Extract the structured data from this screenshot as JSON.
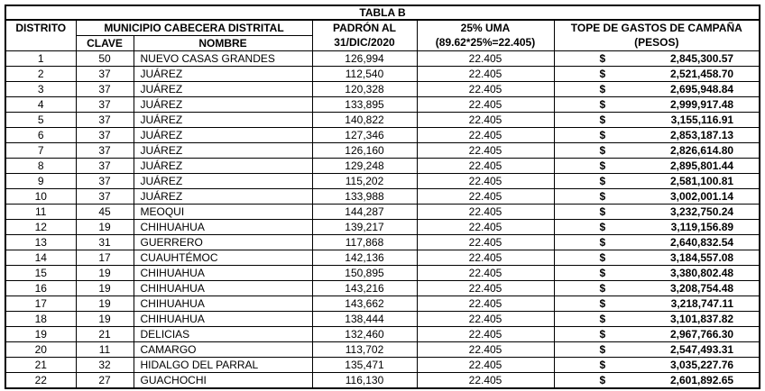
{
  "title": "TABLA B",
  "columns": {
    "distrito": "DISTRITO",
    "municipio_group": "MUNICIPIO CABECERA DISTRITAL",
    "clave": "CLAVE",
    "nombre": "NOMBRE",
    "padron": [
      "PADRÓN AL",
      "31/DIC/2020"
    ],
    "uma": [
      "25% UMA",
      "(89.62*25%=22.405)"
    ],
    "tope": [
      "TOPE DE GASTOS DE CAMPAÑA",
      "(PESOS)"
    ]
  },
  "currency_symbol": "$",
  "colors": {
    "border": "#000000",
    "text": "#000000",
    "background": "#ffffff"
  },
  "rows": [
    {
      "distrito": "1",
      "clave": "50",
      "nombre": "NUEVO CASAS GRANDES",
      "padron": "126,994",
      "uma": "22.405",
      "tope": "2,845,300.57"
    },
    {
      "distrito": "2",
      "clave": "37",
      "nombre": "JUÁREZ",
      "padron": "112,540",
      "uma": "22.405",
      "tope": "2,521,458.70"
    },
    {
      "distrito": "3",
      "clave": "37",
      "nombre": "JUÁREZ",
      "padron": "120,328",
      "uma": "22.405",
      "tope": "2,695,948.84"
    },
    {
      "distrito": "4",
      "clave": "37",
      "nombre": "JUÁREZ",
      "padron": "133,895",
      "uma": "22.405",
      "tope": "2,999,917.48"
    },
    {
      "distrito": "5",
      "clave": "37",
      "nombre": "JUÁREZ",
      "padron": "140,822",
      "uma": "22.405",
      "tope": "3,155,116.91"
    },
    {
      "distrito": "6",
      "clave": "37",
      "nombre": "JUÁREZ",
      "padron": "127,346",
      "uma": "22.405",
      "tope": "2,853,187.13"
    },
    {
      "distrito": "7",
      "clave": "37",
      "nombre": "JUÁREZ",
      "padron": "126,160",
      "uma": "22.405",
      "tope": "2,826,614.80"
    },
    {
      "distrito": "8",
      "clave": "37",
      "nombre": "JUÁREZ",
      "padron": "129,248",
      "uma": "22.405",
      "tope": "2,895,801.44"
    },
    {
      "distrito": "9",
      "clave": "37",
      "nombre": "JUÁREZ",
      "padron": "115,202",
      "uma": "22.405",
      "tope": "2,581,100.81"
    },
    {
      "distrito": "10",
      "clave": "37",
      "nombre": "JUÁREZ",
      "padron": "133,988",
      "uma": "22.405",
      "tope": "3,002,001.14"
    },
    {
      "distrito": "11",
      "clave": "45",
      "nombre": "MEOQUI",
      "padron": "144,287",
      "uma": "22.405",
      "tope": "3,232,750.24"
    },
    {
      "distrito": "12",
      "clave": "19",
      "nombre": "CHIHUAHUA",
      "padron": "139,217",
      "uma": "22.405",
      "tope": "3,119,156.89"
    },
    {
      "distrito": "13",
      "clave": "31",
      "nombre": "GUERRERO",
      "padron": "117,868",
      "uma": "22.405",
      "tope": "2,640,832.54"
    },
    {
      "distrito": "14",
      "clave": "17",
      "nombre": "CUAUHTÉMOC",
      "padron": "142,136",
      "uma": "22.405",
      "tope": "3,184,557.08"
    },
    {
      "distrito": "15",
      "clave": "19",
      "nombre": "CHIHUAHUA",
      "padron": "150,895",
      "uma": "22.405",
      "tope": "3,380,802.48"
    },
    {
      "distrito": "16",
      "clave": "19",
      "nombre": "CHIHUAHUA",
      "padron": "143,216",
      "uma": "22.405",
      "tope": "3,208,754.48"
    },
    {
      "distrito": "17",
      "clave": "19",
      "nombre": "CHIHUAHUA",
      "padron": "143,662",
      "uma": "22.405",
      "tope": "3,218,747.11"
    },
    {
      "distrito": "18",
      "clave": "19",
      "nombre": "CHIHUAHUA",
      "padron": "138,444",
      "uma": "22.405",
      "tope": "3,101,837.82"
    },
    {
      "distrito": "19",
      "clave": "21",
      "nombre": "DELICIAS",
      "padron": "132,460",
      "uma": "22.405",
      "tope": "2,967,766.30"
    },
    {
      "distrito": "20",
      "clave": "11",
      "nombre": "CAMARGO",
      "padron": "113,702",
      "uma": "22.405",
      "tope": "2,547,493.31"
    },
    {
      "distrito": "21",
      "clave": "32",
      "nombre": "HIDALGO DEL PARRAL",
      "padron": "135,471",
      "uma": "22.405",
      "tope": "3,035,227.76"
    },
    {
      "distrito": "22",
      "clave": "27",
      "nombre": "GUACHOCHI",
      "padron": "116,130",
      "uma": "22.405",
      "tope": "2,601,892.65"
    }
  ]
}
